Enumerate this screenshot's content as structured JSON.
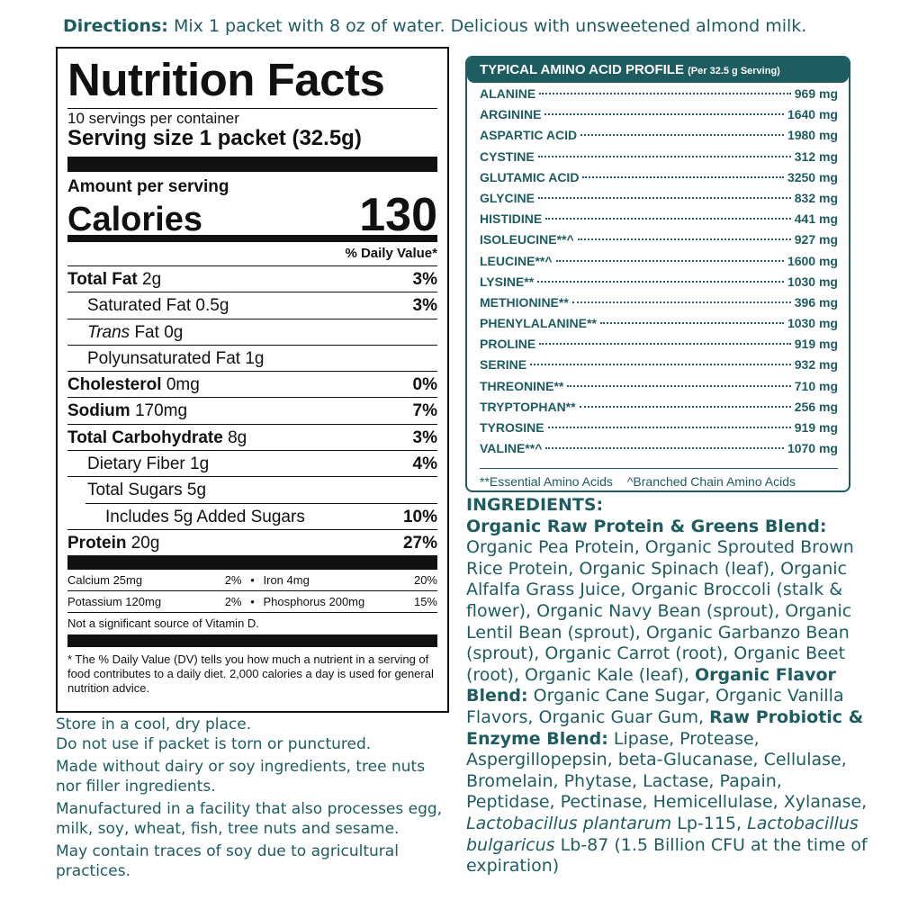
{
  "directions": {
    "label": "Directions:",
    "text": "Mix 1 packet with 8 oz of water. Delicious with unsweetened almond milk."
  },
  "nutrition_facts": {
    "title": "Nutrition Facts",
    "servings": "10 servings per container",
    "serving_size": "Serving size 1 packet (32.5g)",
    "amount_per_serving": "Amount per serving",
    "calories_label": "Calories",
    "calories": 130,
    "dv_header": "% Daily Value*",
    "nutrients": [
      {
        "name": "Total Fat",
        "amount": "2g",
        "dv": "3%"
      },
      {
        "name": "Saturated Fat",
        "amount": "0.5g",
        "dv": "3%"
      },
      {
        "name_italic": "Trans",
        "name": "Fat",
        "amount": "0g"
      },
      {
        "name": "Polyunsaturated Fat",
        "amount": "1g"
      },
      {
        "name": "Cholesterol",
        "amount": "0mg",
        "dv": "0%"
      },
      {
        "name": "Sodium",
        "amount": "170mg",
        "dv": "7%"
      },
      {
        "name": "Total Carbohydrate",
        "amount": "8g",
        "dv": "3%"
      },
      {
        "name": "Dietary Fiber",
        "amount": "1g",
        "dv": "4%"
      },
      {
        "name": "Total Sugars",
        "amount": "5g"
      },
      {
        "name": "Includes 5g Added Sugars",
        "dv": "10%"
      },
      {
        "name": "Protein",
        "amount": "20g",
        "dv": "27%"
      }
    ],
    "minerals": [
      [
        {
          "name": "Calcium 25mg",
          "dv": "2%"
        },
        {
          "name": "Iron 4mg",
          "dv": "20%"
        }
      ],
      [
        {
          "name": "Potassium 120mg",
          "dv": "2%"
        },
        {
          "name": "Phosphorus 200mg",
          "dv": "15%"
        }
      ]
    ],
    "vitamin_note": "Not a significant source of Vitamin D.",
    "footnote": "* The % Daily Value (DV) tells you how much a nutrient in a serving of food contributes to a daily diet. 2,000 calories a day is used for general nutrition advice."
  },
  "amino_acid_profile": {
    "title": "TYPICAL AMINO ACID PROFILE",
    "subtitle": "(Per 32.5 g Serving)",
    "rows": [
      {
        "name": "ALANINE",
        "amount": "969 mg"
      },
      {
        "name": "ARGININE",
        "amount": "1640 mg"
      },
      {
        "name": "ASPARTIC ACID",
        "amount": "1980 mg"
      },
      {
        "name": "CYSTINE",
        "amount": "312 mg"
      },
      {
        "name": "GLUTAMIC ACID",
        "amount": "3250 mg"
      },
      {
        "name": "GLYCINE",
        "amount": "832 mg"
      },
      {
        "name": "HISTIDINE",
        "amount": "441 mg"
      },
      {
        "name": "ISOLEUCINE**^",
        "amount": "927 mg"
      },
      {
        "name": "LEUCINE**^",
        "amount": "1600 mg"
      },
      {
        "name": "LYSINE**",
        "amount": "1030 mg"
      },
      {
        "name": "METHIONINE**",
        "amount": "396 mg"
      },
      {
        "name": "PHENYLALANINE**",
        "amount": "1030 mg"
      },
      {
        "name": "PROLINE",
        "amount": "919 mg"
      },
      {
        "name": "SERINE",
        "amount": "932 mg"
      },
      {
        "name": "THREONINE**",
        "amount": "710 mg"
      },
      {
        "name": "TRYPTOPHAN**",
        "amount": "256 mg"
      },
      {
        "name": "TYROSINE",
        "amount": "919 mg"
      },
      {
        "name": "VALINE**^",
        "amount": "1070 mg"
      }
    ],
    "footnotes": [
      "**Essential Amino Acids",
      "^Branched Chain Amino Acids"
    ]
  },
  "notes": [
    "Store in a cool, dry place.\nDo not use if packet is torn or punctured.",
    "Made without dairy or soy ingredients, tree nuts nor filler ingredients.",
    "Manufactured in a facility that also processes egg, milk, soy, wheat, fish, tree nuts and sesame.",
    "May contain traces of soy due to agricultural practices."
  ],
  "ingredients": {
    "heading": "INGREDIENTS:",
    "segments": [
      {
        "text": "Organic Raw Protein & Greens Blend:",
        "style": "bold"
      },
      {
        "text": "Organic Pea Protein, Organic Sprouted Brown Rice Protein, Organic Spinach (leaf), Organic Alfalfa Grass Juice, Organic Broccoli (stalk & flower), Organic Navy Bean (sprout), Organic Lentil Bean (sprout), Organic Garbanzo Bean (sprout), Organic Carrot (root), Organic Beet (root), Organic Kale (leaf),",
        "style": "normal"
      },
      {
        "text": "Organic Flavor Blend:",
        "style": "bold"
      },
      {
        "text": "Organic Cane Sugar, Organic Vanilla Flavors, Organic Guar Gum,",
        "style": "normal"
      },
      {
        "text": "Raw Probiotic & Enzyme Blend:",
        "style": "bold"
      },
      {
        "text": "Lipase, Protease, Aspergillopepsin, beta-Glucanase, Cellulase, Bromelain, Phytase, Lactase, Papain, Peptidase, Pectinase, Hemicellulase, Xylanase,",
        "style": "normal"
      },
      {
        "text": "Lactobacillus plantarum",
        "style": "italic"
      },
      {
        "text": "Lp-115,",
        "style": "normal"
      },
      {
        "text": "Lactobacillus bulgaricus",
        "style": "italic"
      },
      {
        "text": "Lb-87 (1.5 Billion CFU at the time of expiration)",
        "style": "normal"
      }
    ]
  }
}
